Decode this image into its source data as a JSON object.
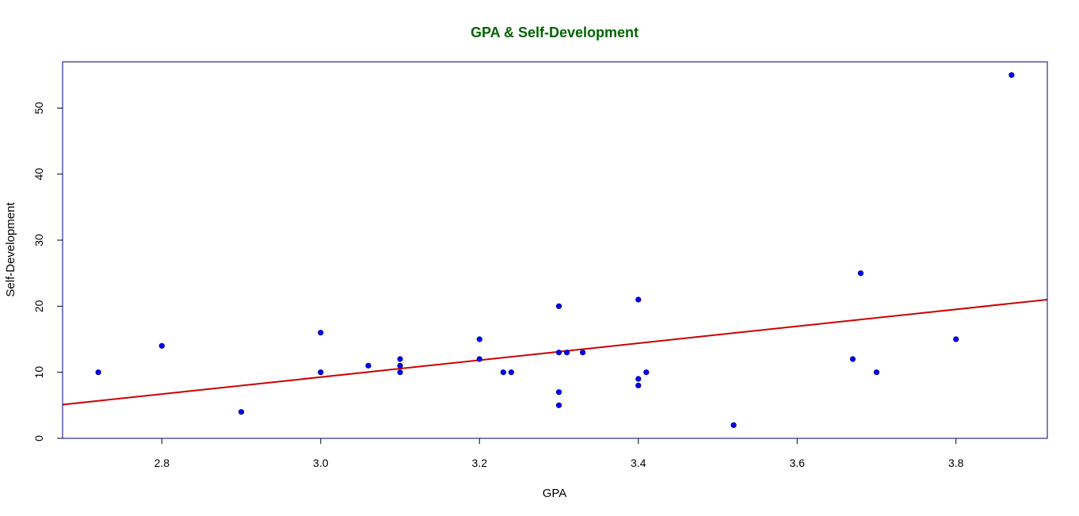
{
  "chart_data": {
    "type": "scatter",
    "title": "GPA & Self-Development",
    "xlabel": "GPA",
    "ylabel": "Self-Development",
    "xlim": [
      2.675,
      3.915
    ],
    "ylim": [
      0,
      57
    ],
    "x_ticks": [
      "2.8",
      "3.0",
      "3.2",
      "3.4",
      "3.6",
      "3.8"
    ],
    "y_ticks": [
      "0",
      "10",
      "20",
      "30",
      "40",
      "50"
    ],
    "grid": false,
    "legend": "none",
    "colors": {
      "title": "#006400",
      "points": "#0000ff",
      "point_edge": "#000080",
      "line": "#cc0000",
      "frame": "#000080"
    },
    "points": {
      "x": [
        2.72,
        2.8,
        2.9,
        3.0,
        3.0,
        3.06,
        3.1,
        3.1,
        3.1,
        3.2,
        3.2,
        3.23,
        3.24,
        3.3,
        3.3,
        3.3,
        3.3,
        3.31,
        3.33,
        3.4,
        3.4,
        3.4,
        3.41,
        3.52,
        3.67,
        3.68,
        3.7,
        3.8,
        3.87
      ],
      "y": [
        10,
        14,
        4,
        16,
        10,
        11,
        12,
        11,
        10,
        15,
        12,
        10,
        10,
        20,
        13,
        7,
        5,
        13,
        13,
        21,
        9,
        8,
        10,
        2,
        12,
        25,
        10,
        15,
        55
      ]
    },
    "regression_line": {
      "x": [
        2.675,
        3.915
      ],
      "y": [
        5.1,
        21.0
      ]
    }
  }
}
